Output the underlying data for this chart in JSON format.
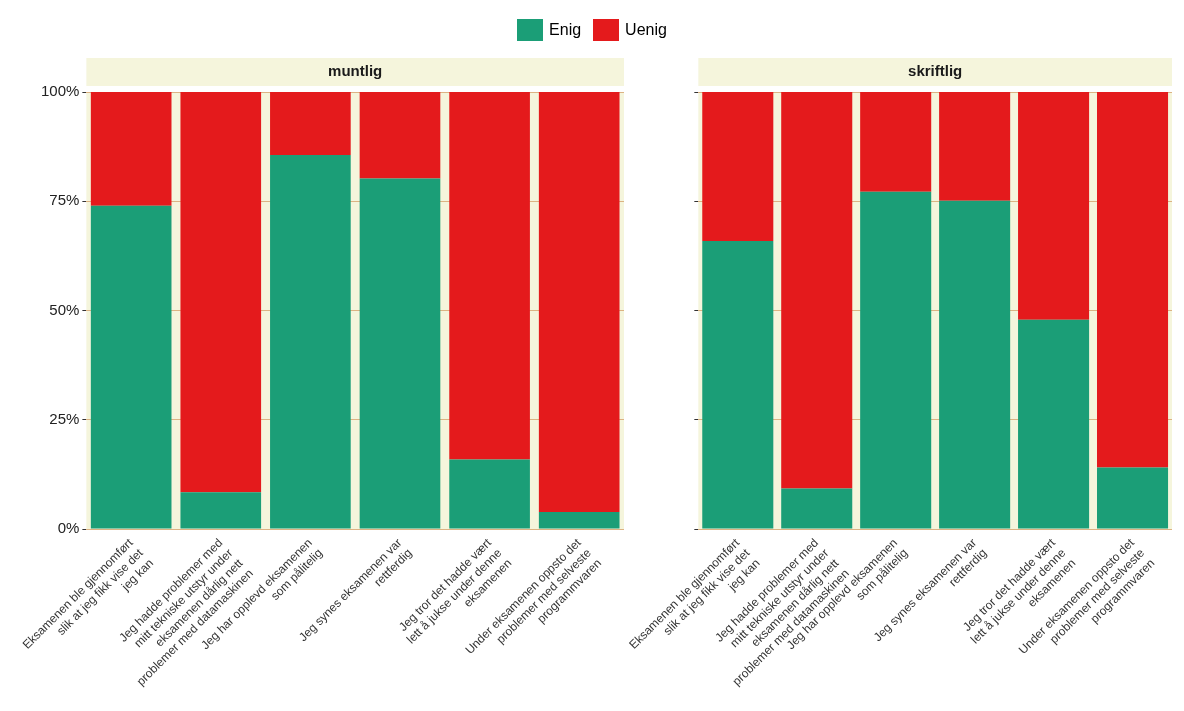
{
  "chart_data": [
    {
      "type": "bar",
      "title": "muntlig",
      "stacked": true,
      "legend": "top",
      "grid": "y",
      "categories": [
        "Eksamenen ble gjennomført slik at jeg fikk vise det jeg kan",
        "Jeg hadde problemer med mitt tekniske utstyr under eksamenen dårlig nett problemer med datamaskinen",
        "Jeg har opplevd eksamenen som pålitelig",
        "Jeg synes eksamenen var rettferdig",
        "Jeg tror det hadde vært lett å jukse under denne eksamenen",
        "Under eksamenen oppsto det problemer med selveste programmvaren"
      ],
      "ylim": [
        0,
        100
      ],
      "yticks": [
        {
          "value": 0,
          "label": "0%"
        },
        {
          "value": 25,
          "label": "25%"
        },
        {
          "value": 50,
          "label": "50%"
        },
        {
          "value": 75,
          "label": "75%"
        },
        {
          "value": 100,
          "label": "100%"
        }
      ],
      "series": [
        {
          "name": "Enig",
          "color": "#1b9e77",
          "values": [
            74,
            8.4,
            85.6,
            80.2,
            15.9,
            3.9
          ]
        },
        {
          "name": "Uenig",
          "color": "#e41a1c",
          "values": [
            26,
            91.6,
            14.4,
            19.8,
            84.1,
            96.1
          ]
        }
      ]
    },
    {
      "type": "bar",
      "title": "skriftlig",
      "stacked": true,
      "grid": "y",
      "tick_labels": "x",
      "categories": [
        "Eksamenen ble gjennomført slik at jeg fikk vise det jeg kan",
        "Jeg hadde problemer med mitt tekniske utstyr under eksamenen dårlig nett problemer med datamaskinen",
        "Jeg har opplevd eksamenen som pålitelig",
        "Jeg synes eksamenen var rettferdig",
        "Jeg tror det hadde vært lett å jukse under denne eksamenen",
        "Under eksamenen oppsto det problemer med selveste programmvaren"
      ],
      "ylim": [
        0,
        100
      ],
      "yticks": [
        {
          "value": 0,
          "label": null
        },
        {
          "value": 25,
          "label": null
        },
        {
          "value": 50,
          "label": null
        },
        {
          "value": 75,
          "label": null
        },
        {
          "value": 100,
          "label": null
        }
      ],
      "series": [
        {
          "color": "#1b9e77",
          "values": [
            65.9,
            9.3,
            77.2,
            75.1,
            47.9,
            14.1
          ]
        },
        {
          "color": "#e41a1c",
          "values": [
            34.1,
            90.7,
            22.8,
            24.9,
            52.1,
            85.9
          ]
        }
      ]
    }
  ]
}
